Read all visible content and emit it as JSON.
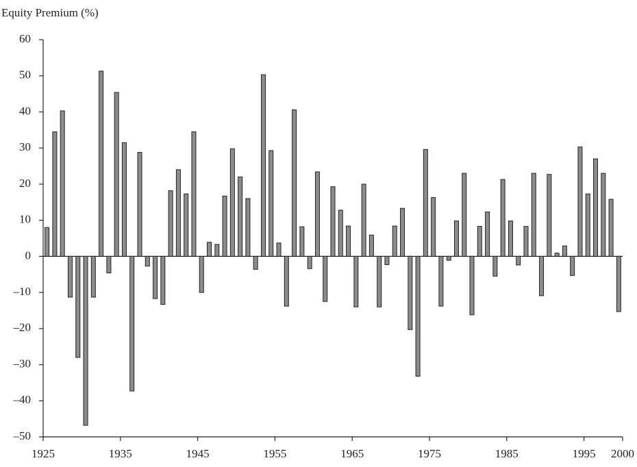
{
  "chart_data": {
    "type": "bar",
    "y_axis_label": "Equity Premium (%)",
    "x": [
      1926,
      1927,
      1928,
      1929,
      1930,
      1931,
      1932,
      1933,
      1934,
      1935,
      1936,
      1937,
      1938,
      1939,
      1940,
      1941,
      1942,
      1943,
      1944,
      1945,
      1946,
      1947,
      1948,
      1949,
      1950,
      1951,
      1952,
      1953,
      1954,
      1955,
      1956,
      1957,
      1958,
      1959,
      1960,
      1961,
      1962,
      1963,
      1964,
      1965,
      1966,
      1967,
      1968,
      1969,
      1970,
      1971,
      1972,
      1973,
      1974,
      1975,
      1976,
      1977,
      1978,
      1979,
      1980,
      1981,
      1982,
      1983,
      1984,
      1985,
      1986,
      1987,
      1988,
      1989,
      1990,
      1991,
      1992,
      1993,
      1994,
      1995,
      1996,
      1997,
      1998,
      1999,
      2000
    ],
    "values": [
      8,
      34.5,
      40.3,
      -11.3,
      -28,
      -46.8,
      -11.3,
      51.3,
      -4.6,
      45.4,
      31.5,
      -37.3,
      28.8,
      -2.7,
      -11.7,
      -13.3,
      18.2,
      24,
      17.3,
      34.5,
      -10,
      3.9,
      3.3,
      16.7,
      29.8,
      22,
      16,
      -3.6,
      50.3,
      29.3,
      3.7,
      -13.8,
      40.6,
      8.2,
      -3.4,
      23.4,
      -12.5,
      19.3,
      12.8,
      8.4,
      -14,
      20,
      5.9,
      -14,
      -2.3,
      8.4,
      13.3,
      -20.3,
      -33.2,
      29.6,
      16.3,
      -13.8,
      -1.1,
      9.8,
      23,
      -16.2,
      8.3,
      12.3,
      -5.5,
      21.3,
      9.8,
      -2.4,
      8.3,
      23,
      -10.9,
      22.7,
      0.9,
      2.9,
      -5.3,
      30.3,
      17.3,
      27,
      23,
      15.8,
      -15.3
    ],
    "color": "#8c8c8c",
    "xlim": [
      1925,
      2000
    ],
    "xticks": [
      1925,
      1935,
      1945,
      1955,
      1965,
      1975,
      1985,
      1995,
      2000
    ],
    "ylim": [
      -50,
      60
    ],
    "yticks": [
      {
        "value": -50,
        "label": "–50"
      },
      {
        "value": -40,
        "label": "–40"
      },
      {
        "value": -30,
        "label": "–30"
      },
      {
        "value": -20,
        "label": "–20"
      },
      {
        "value": -10,
        "label": "–10"
      },
      0,
      10,
      20,
      30,
      40,
      50,
      60
    ],
    "grid": false
  }
}
